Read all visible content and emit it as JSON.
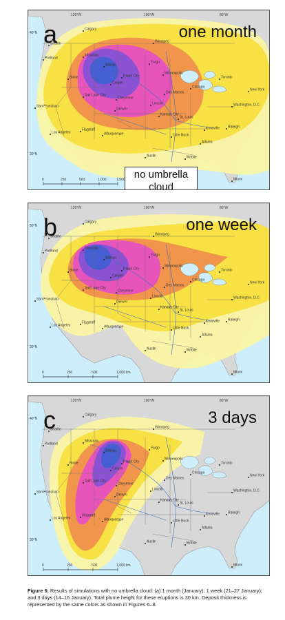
{
  "panels": [
    {
      "letter": "a",
      "duration": "one month",
      "note_line1": "no umbrella",
      "note_line2": "cloud",
      "cities": [
        "Calgary",
        "Winnipeg",
        "Seattle",
        "Portland",
        "Missoula",
        "Billings",
        "Fargo",
        "Boise",
        "Rapid City",
        "Minneapolis",
        "Casper",
        "Toronto",
        "Salt Lake City",
        "Cheyenne",
        "Des Moines",
        "Chicago",
        "New York",
        "Denver",
        "Lincoln",
        "San Francisco",
        "Kansas City",
        "St. Louis",
        "Washington, D.C.",
        "Los Angeles",
        "Flagstaff",
        "Albuquerque",
        "Knoxville",
        "Raleigh",
        "Little Rock",
        "Atlanta",
        "Austin",
        "Mobile",
        "Miami"
      ],
      "longitudes": [
        "120°W",
        "100°W",
        "80°W"
      ],
      "latitudes": [
        "40°N",
        "30°N"
      ],
      "scale": [
        "0",
        "250",
        "500",
        "1,000",
        "1,500 km"
      ]
    },
    {
      "letter": "b",
      "duration": "one week",
      "cities": [
        "Calgary",
        "Winnipeg",
        "Seattle",
        "Portland",
        "Missoula",
        "Billings",
        "Fargo",
        "Boise",
        "Rapid City",
        "Minneapolis",
        "Casper",
        "Toronto",
        "Salt Lake City",
        "Cheyenne",
        "Des Moines",
        "Chicago",
        "New York",
        "Denver",
        "Lincoln",
        "San Francisco",
        "Kansas City",
        "St. Louis",
        "Washington, D.C.",
        "Los Angeles",
        "Flagstaff",
        "Albuquerque",
        "Knoxville",
        "Raleigh",
        "Little Rock",
        "Atlanta",
        "Austin",
        "Mobile",
        "Miami"
      ],
      "longitudes": [
        "120°W",
        "100°W",
        "80°W"
      ],
      "latitudes": [
        "50°N",
        "30°N"
      ],
      "scale": [
        "0",
        "250",
        "500",
        "1,000 km"
      ]
    },
    {
      "letter": "c",
      "duration": "3 days",
      "cities": [
        "Calgary",
        "Winnipeg",
        "Seattle",
        "Portland",
        "Missoula",
        "Billings",
        "Fargo",
        "Boise",
        "Rapid City",
        "Minneapolis",
        "Casper",
        "Toronto",
        "Salt Lake City",
        "Cheyenne",
        "Des Moines",
        "Chicago",
        "New York",
        "Denver",
        "Lincoln",
        "San Francisco",
        "Kansas City",
        "St. Louis",
        "Washington, D.C.",
        "Los Angeles",
        "Flagstaff",
        "Albuquerque",
        "Knoxville",
        "Raleigh",
        "Little Rock",
        "Atlanta",
        "Austin",
        "Mobile",
        "Miami"
      ],
      "longitudes": [
        "120°W",
        "100°W",
        "80°W"
      ],
      "latitudes": [
        "40°N",
        "30°N"
      ],
      "scale": [
        "0",
        "250",
        "500",
        "1,000 km"
      ]
    }
  ],
  "caption": {
    "figure_label": "Figure 9.",
    "text": "Results of simulations with no umbrella cloud: (a) 1 month (January); 1 week (21–27 January); and 3 days (14–16 January). Total plume height for these eruptions is 30 km. Deposit thickness is represented by the same colors as shown in Figures 6–8."
  },
  "colors": {
    "ocean": "#cdeefa",
    "land": "#d8d8d8",
    "yellow_light": "#fbf5a3",
    "yellow": "#f6df3c",
    "orange": "#ef8e4c",
    "magenta": "#e64fc4",
    "purple": "#8452d6",
    "blue": "#3f5fd0"
  }
}
